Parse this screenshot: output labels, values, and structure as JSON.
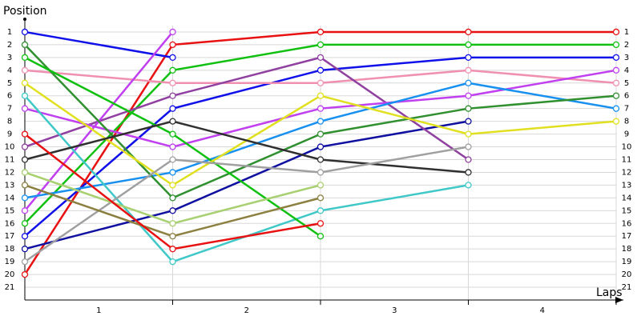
{
  "chart_data": {
    "type": "line",
    "title": "Position",
    "x_label": "Laps",
    "lap_labels": [
      "1",
      "2",
      "3",
      "4"
    ],
    "xlim": [
      0,
      4
    ],
    "ylim": [
      0,
      22
    ],
    "y_inverted": true,
    "yticks": [
      1,
      2,
      3,
      4,
      5,
      6,
      7,
      8,
      9,
      10,
      11,
      12,
      13,
      14,
      15,
      16,
      17,
      18,
      19,
      20,
      21
    ],
    "grid": true,
    "series": [
      {
        "color": "#e81010",
        "values": [
          20,
          2,
          1,
          1,
          1
        ]
      },
      {
        "color": "#10c010",
        "values": [
          16,
          4,
          2,
          2,
          2
        ]
      },
      {
        "color": "#1010e8",
        "values": [
          17,
          7,
          4,
          3,
          3
        ]
      },
      {
        "color": "#1010e8",
        "values": [
          1,
          3,
          null,
          null,
          null
        ]
      },
      {
        "color": "#f090b0",
        "values": [
          4,
          5,
          5,
          4,
          5
        ]
      },
      {
        "color": "#1010a0",
        "values": [
          18,
          15,
          10,
          8,
          null
        ]
      },
      {
        "color": "#9040a0",
        "values": [
          10,
          6,
          3,
          11,
          null
        ]
      },
      {
        "color": "#c040f0",
        "values": [
          15,
          1,
          null,
          null,
          null
        ]
      },
      {
        "color": "#c040f0",
        "values": [
          7,
          10,
          7,
          6,
          4
        ]
      },
      {
        "color": "#1890f0",
        "values": [
          14,
          12,
          8,
          5,
          7
        ]
      },
      {
        "color": "#40c8c8",
        "values": [
          6,
          19,
          15,
          13,
          null
        ]
      },
      {
        "color": "#309030",
        "values": [
          2,
          14,
          9,
          7,
          6
        ]
      },
      {
        "color": "#10c010",
        "values": [
          3,
          9,
          17,
          null,
          null
        ]
      },
      {
        "color": "#e0e020",
        "values": [
          5,
          13,
          6,
          9,
          8
        ]
      },
      {
        "color": "#303030",
        "values": [
          11,
          8,
          11,
          12,
          null
        ]
      },
      {
        "color": "#a0a0a0",
        "values": [
          19,
          11,
          12,
          10,
          null
        ]
      },
      {
        "color": "#a8d070",
        "values": [
          12,
          16,
          13,
          null,
          null
        ]
      },
      {
        "color": "#8c8040",
        "values": [
          13,
          17,
          14,
          null,
          null
        ]
      },
      {
        "color": "#e81010",
        "values": [
          9,
          18,
          16,
          null,
          null
        ]
      }
    ]
  }
}
